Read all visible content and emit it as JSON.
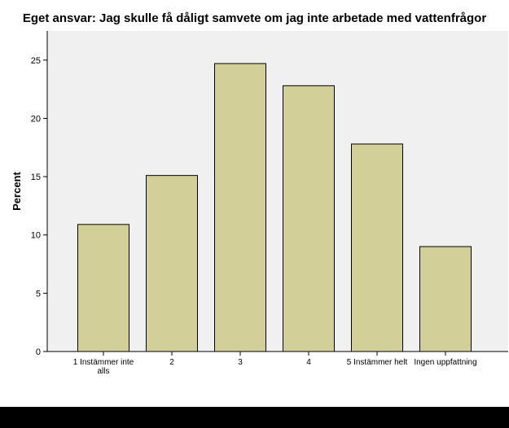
{
  "chart_data": {
    "type": "bar",
    "title": "Eget ansvar: Jag skulle få dåligt samvete om jag inte arbetade med vattenfrågor",
    "xlabel": "",
    "ylabel": "Percent",
    "ylim": [
      0,
      27.5
    ],
    "yticks": [
      0,
      5,
      10,
      15,
      20,
      25
    ],
    "grid": false,
    "categories": [
      [
        "1 Instämmer inte",
        "alls"
      ],
      [
        "2"
      ],
      [
        "3"
      ],
      [
        "4"
      ],
      [
        "5 Instämmer helt"
      ],
      [
        "Ingen uppfattning"
      ]
    ],
    "values": [
      10.9,
      15.1,
      24.7,
      22.8,
      17.8,
      9.0
    ],
    "colors": {
      "bar_fill": "#d3cf98",
      "bar_stroke": "#000000",
      "plot_bg": "#f0f0f0"
    }
  }
}
